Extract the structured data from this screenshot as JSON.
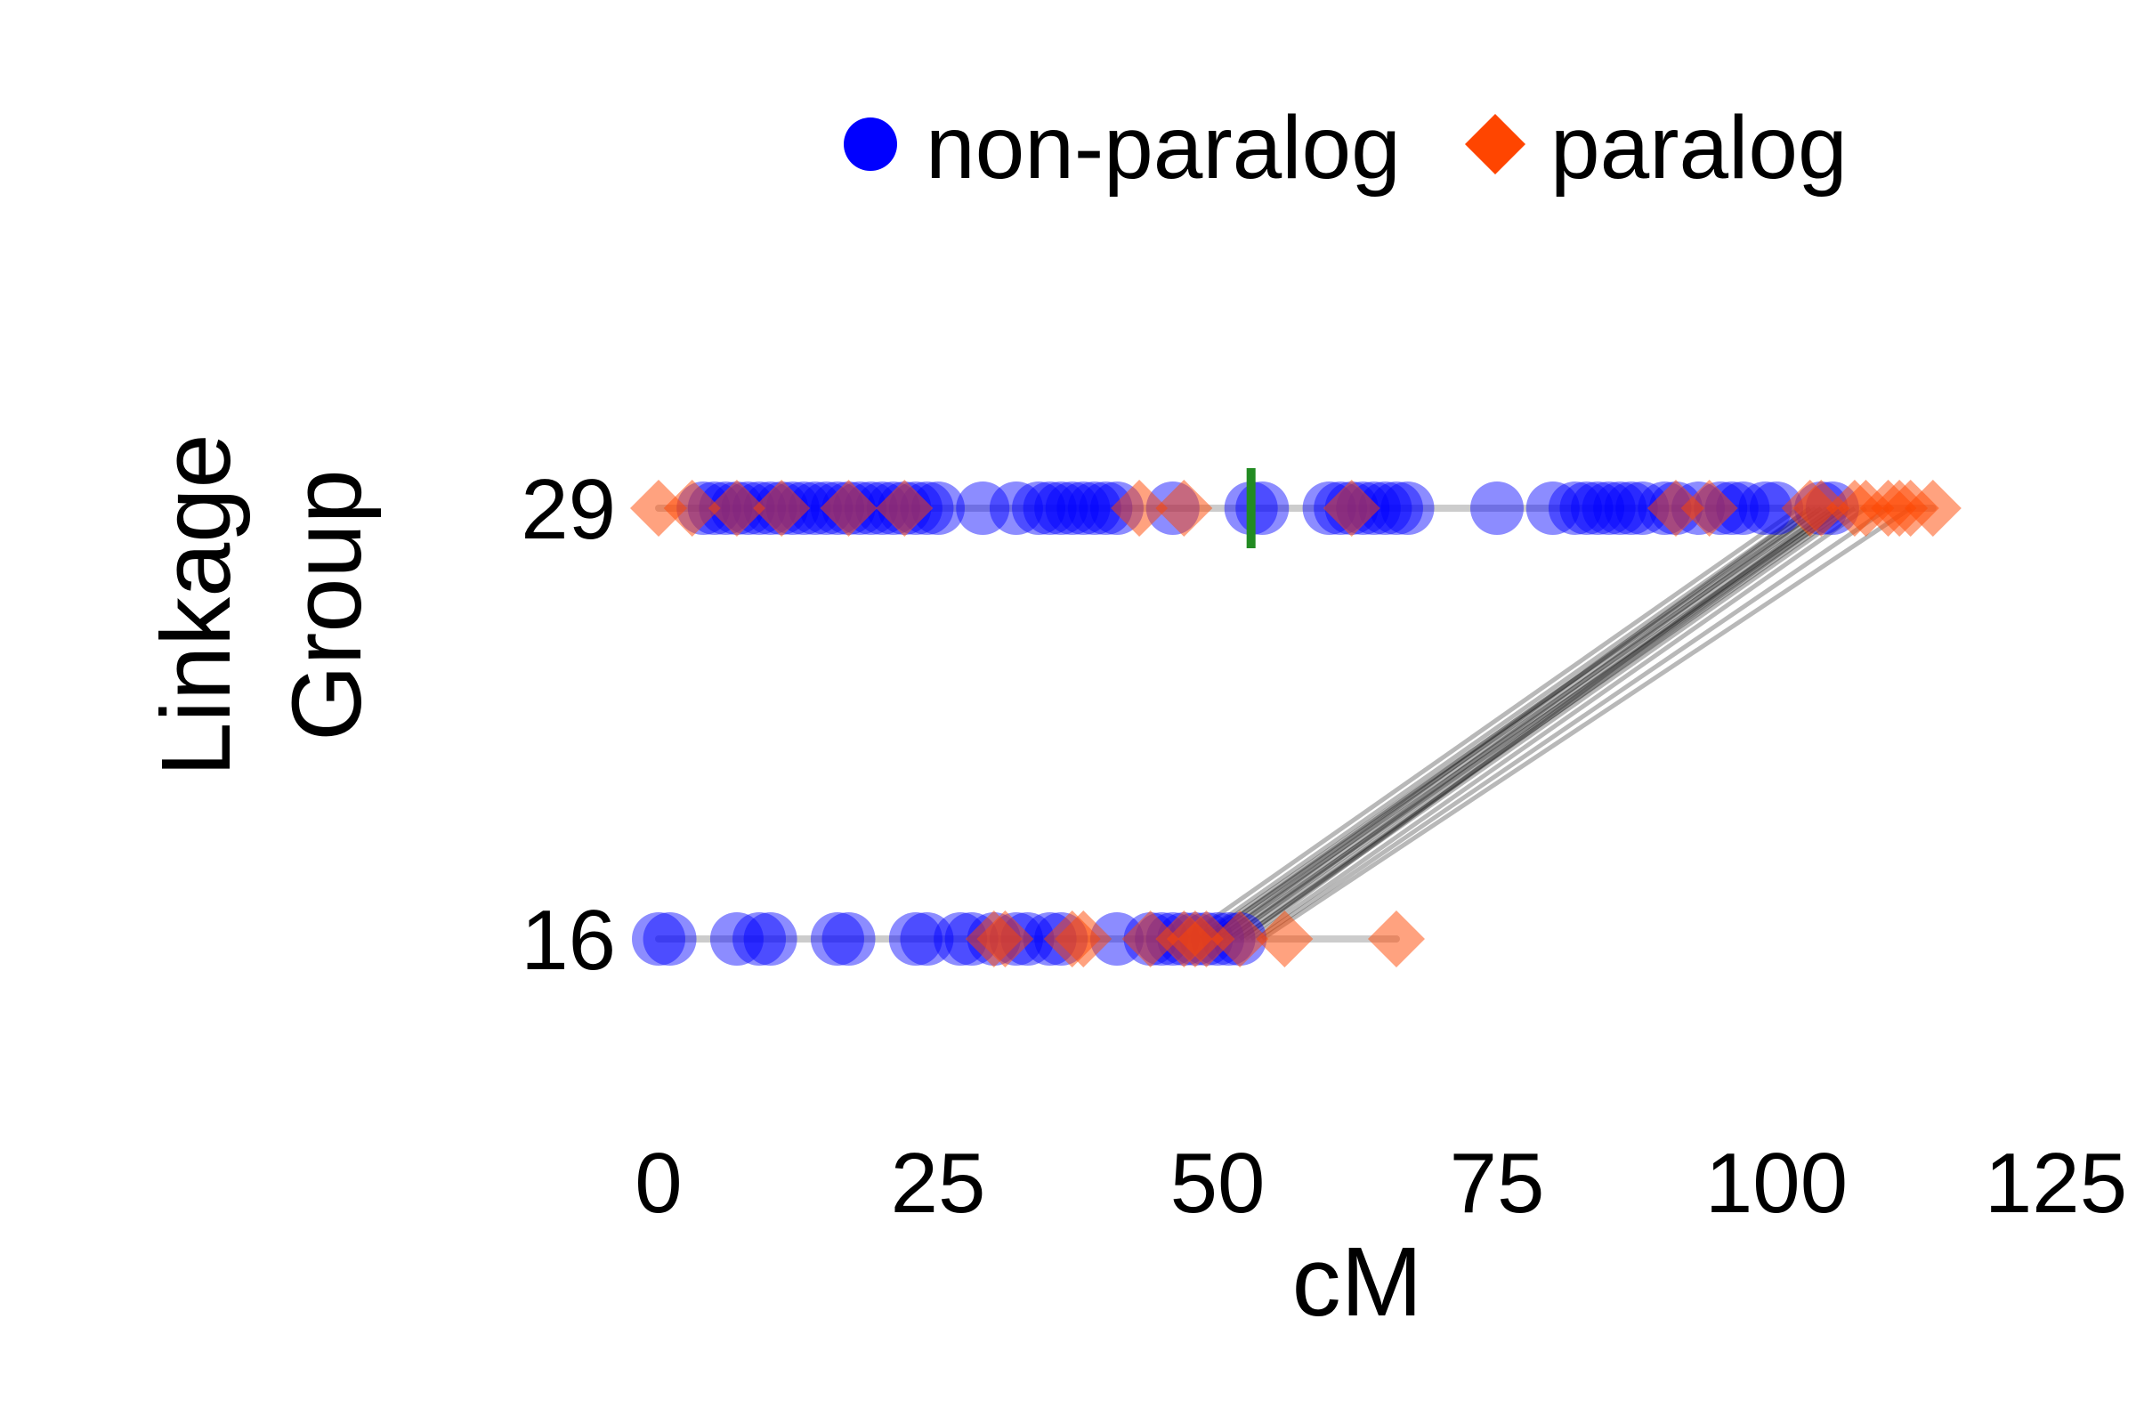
{
  "chart_data": {
    "type": "scatter",
    "xlabel": "cM",
    "ylabel_lines": [
      "Linkage",
      "Group"
    ],
    "xlim": [
      0,
      125
    ],
    "x_ticks": [
      0,
      25,
      50,
      75,
      100,
      125
    ],
    "groups": [
      "29",
      "16"
    ],
    "legend": {
      "position": "top",
      "entries": [
        {
          "label": "non-paralog",
          "shape": "circle",
          "color": "#0000FF"
        },
        {
          "label": "paralog",
          "shape": "diamond",
          "color": "#FF4500"
        }
      ]
    },
    "grid": false,
    "marker": {
      "group": "29",
      "x": 53,
      "color": "#228B22"
    },
    "series": [
      {
        "name": "non-paralog",
        "group": "29",
        "x": [
          4,
          5,
          6,
          7,
          8,
          9,
          10,
          11,
          12,
          13,
          14,
          15,
          16,
          17,
          18,
          19,
          20,
          21,
          22,
          23,
          24,
          25,
          29,
          32,
          34,
          35,
          36,
          37,
          38,
          39,
          40,
          41,
          46,
          53,
          54,
          60,
          61,
          62,
          63,
          64,
          65,
          66,
          67,
          75,
          80,
          82,
          83,
          84,
          85,
          86,
          87,
          88,
          90,
          91,
          93,
          95,
          96,
          97,
          99,
          100,
          104,
          105
        ]
      },
      {
        "name": "paralog",
        "group": "29",
        "x": [
          0,
          3,
          7,
          11,
          17,
          22,
          43,
          47,
          62,
          91,
          94,
          103,
          104,
          107,
          108,
          110,
          111,
          112,
          114
        ]
      },
      {
        "name": "non-paralog",
        "group": "16",
        "x": [
          0,
          1,
          7,
          9,
          10,
          16,
          17,
          23,
          24,
          27,
          28,
          30,
          32,
          33,
          35,
          36,
          41,
          44,
          45,
          46,
          47,
          48,
          49,
          50,
          51,
          52
        ]
      },
      {
        "name": "paralog",
        "group": "16",
        "x": [
          30,
          31,
          37,
          38,
          44,
          47,
          48,
          49,
          52,
          56,
          66
        ]
      }
    ],
    "links": [
      [
        47,
        102
      ],
      [
        48,
        103
      ],
      [
        48.5,
        104
      ],
      [
        49,
        104.5
      ],
      [
        49.5,
        105
      ],
      [
        50,
        105.5
      ],
      [
        50.5,
        106
      ],
      [
        51,
        104
      ],
      [
        51.5,
        106.5
      ],
      [
        52,
        107
      ],
      [
        52.5,
        105
      ],
      [
        53,
        108
      ],
      [
        53.5,
        110
      ],
      [
        54,
        112
      ],
      [
        50,
        103
      ],
      [
        51,
        105.5
      ],
      [
        52,
        106
      ],
      [
        49,
        103.5
      ]
    ]
  }
}
